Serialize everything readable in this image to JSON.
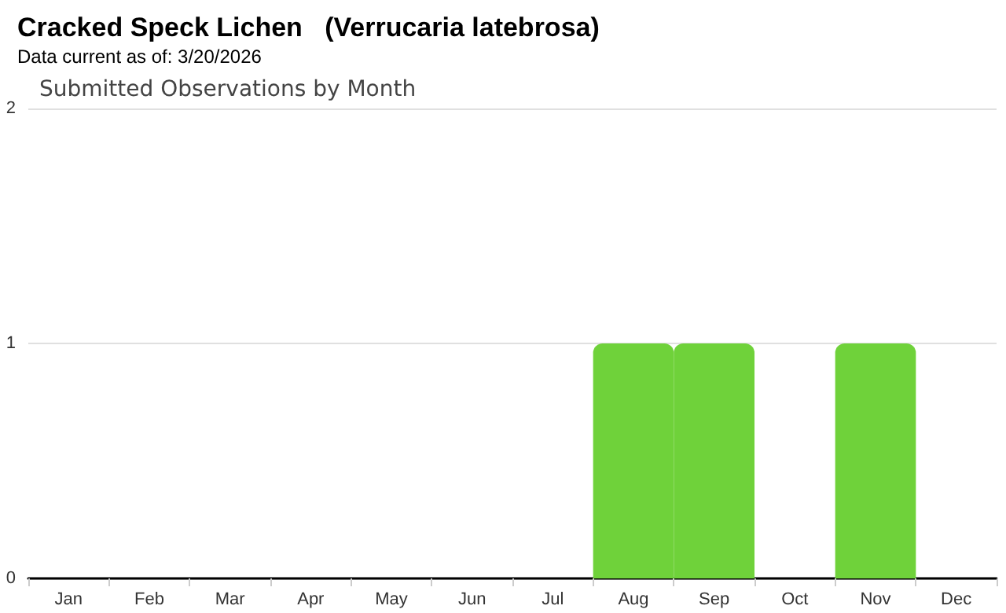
{
  "chart_data": {
    "type": "bar",
    "title": "Cracked Speck Lichen   (Verrucaria latebrosa)",
    "subtitle": "Data current as of: 3/20/2026",
    "annotations": [
      "Submitted Observations by Month"
    ],
    "categories": [
      "Jan",
      "Feb",
      "Mar",
      "Apr",
      "May",
      "Jun",
      "Jul",
      "Aug",
      "Sep",
      "Oct",
      "Nov",
      "Dec"
    ],
    "values": [
      0,
      0,
      0,
      0,
      0,
      0,
      0,
      1,
      1,
      0,
      1,
      0
    ],
    "color": "#6fd23a",
    "ylim": [
      0,
      2
    ],
    "yticks": [
      0,
      1,
      2
    ],
    "grid": "y"
  }
}
